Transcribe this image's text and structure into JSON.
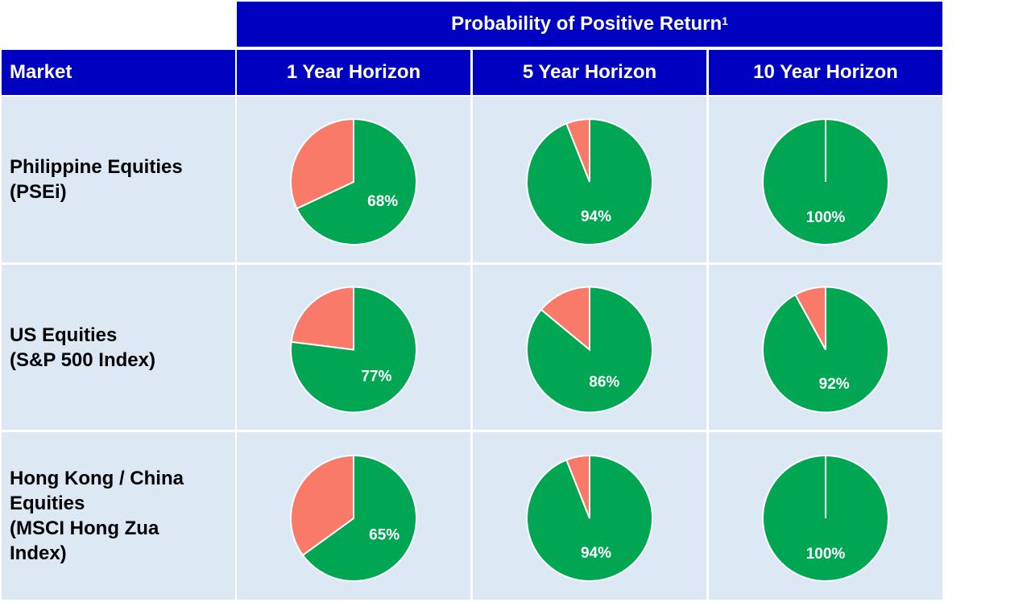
{
  "header": {
    "title": "Probability of Positive Return",
    "footnote_marker": "1",
    "market_label": "Market",
    "horizons": [
      "1 Year Horizon",
      "5 Year Horizon",
      "10 Year Horizon"
    ]
  },
  "markets": [
    {
      "lines": [
        "Philippine Equities",
        "(PSEi)"
      ]
    },
    {
      "lines": [
        "US Equities",
        "(S&P 500 Index)"
      ]
    },
    {
      "lines": [
        "Hong Kong / China",
        "Equities",
        "(MSCI Hong Zua",
        "Index)"
      ]
    }
  ],
  "colors": {
    "positive": "#00a651",
    "negative": "#fa7a6a",
    "header": "#0000c0",
    "cell": "#dde8f5"
  },
  "chart_data": {
    "type": "pie",
    "title": "Probability of Positive Return",
    "rows": [
      "Philippine Equities (PSEi)",
      "US Equities (S&P 500 Index)",
      "Hong Kong / China Equities (MSCI Hong Zua Index)"
    ],
    "columns": [
      "1 Year Horizon",
      "5 Year Horizon",
      "10 Year Horizon"
    ],
    "values": [
      [
        68,
        94,
        100
      ],
      [
        77,
        86,
        92
      ],
      [
        65,
        94,
        100
      ]
    ],
    "labels": [
      [
        "68%",
        "94%",
        "100%"
      ],
      [
        "77%",
        "86%",
        "92%"
      ],
      [
        "65%",
        "94%",
        "100%"
      ]
    ]
  }
}
